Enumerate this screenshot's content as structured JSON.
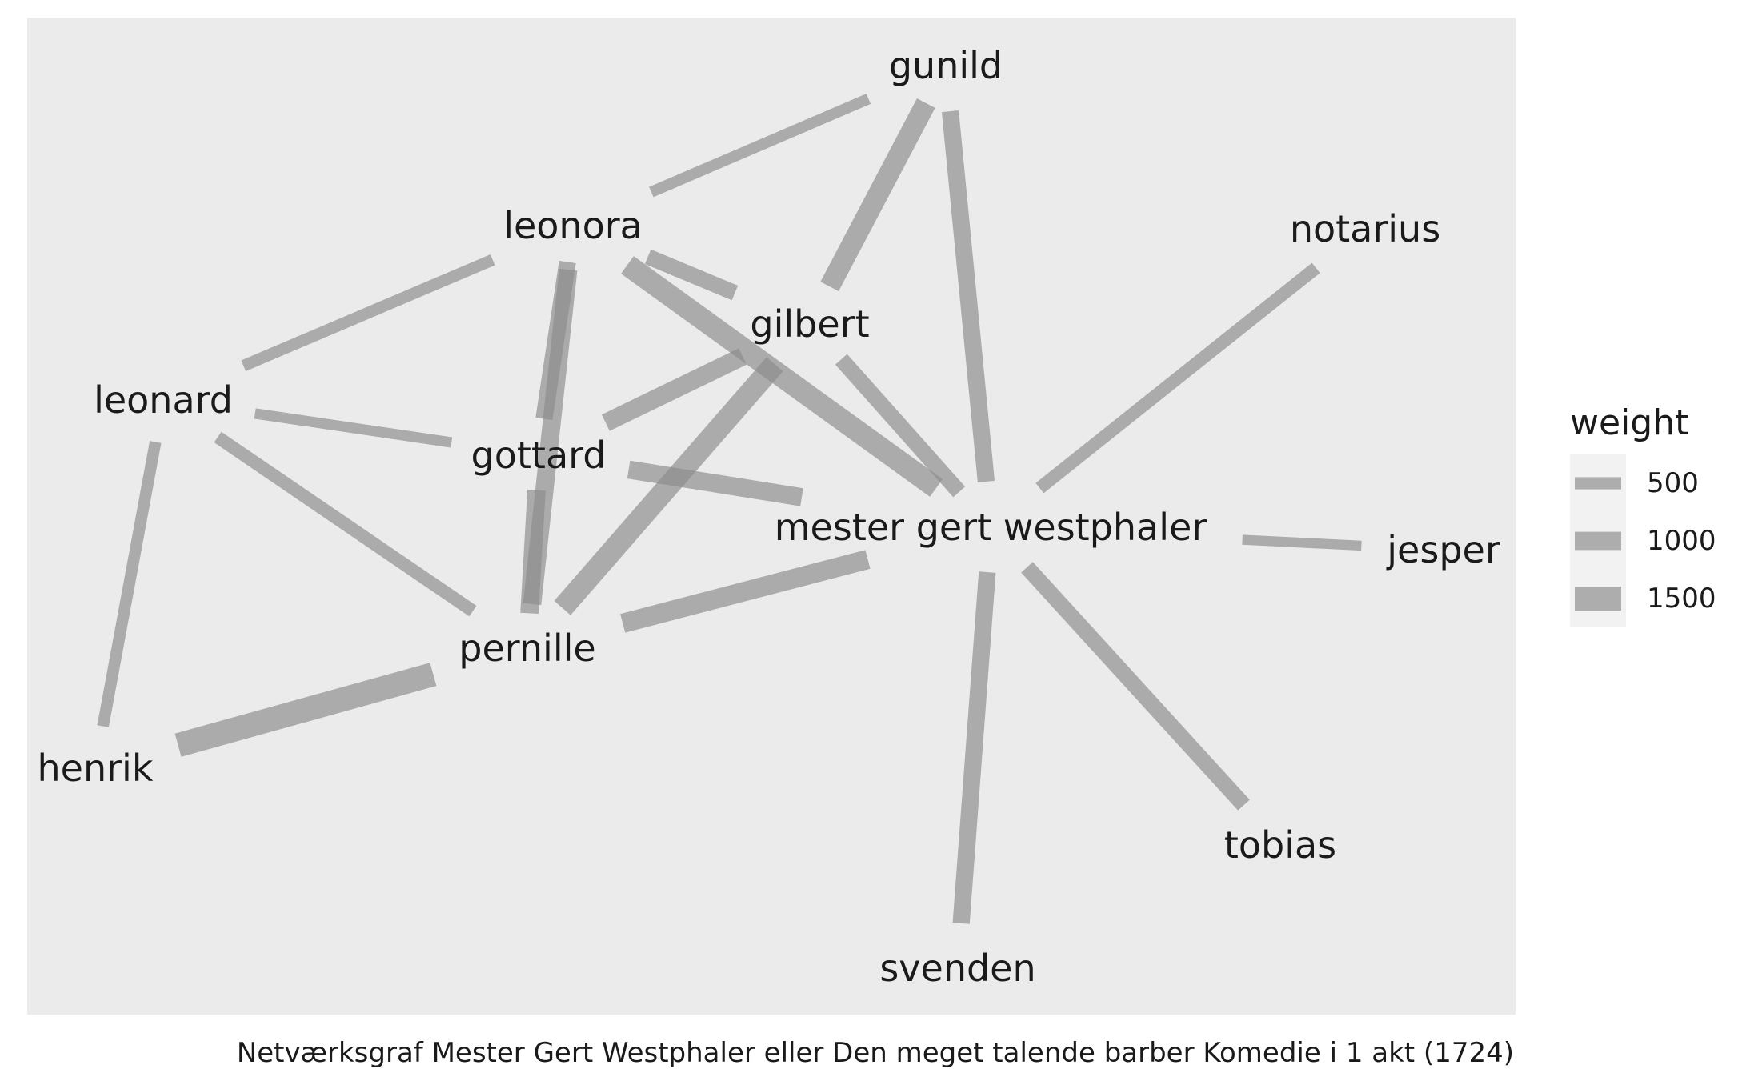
{
  "caption": "Netværksgraf Mester Gert Westphaler eller Den meget talende barber Komedie i 1 akt (1724)",
  "legend": {
    "title": "weight",
    "items": [
      {
        "label": "500",
        "weight": 500
      },
      {
        "label": "1000",
        "weight": 1000
      },
      {
        "label": "1500",
        "weight": 1500
      }
    ]
  },
  "colors": {
    "panel": "#ebebeb",
    "edge": "#8c8c8c",
    "legend_key_bg": "#f2f2f2",
    "text": "#1a1a1a"
  },
  "nodes": [
    {
      "id": "gunild",
      "label": "gunild"
    },
    {
      "id": "leonora",
      "label": "leonora"
    },
    {
      "id": "notarius",
      "label": "notarius"
    },
    {
      "id": "gilbert",
      "label": "gilbert"
    },
    {
      "id": "leonard",
      "label": "leonard"
    },
    {
      "id": "gottard",
      "label": "gottard"
    },
    {
      "id": "mester",
      "label": "mester gert westphaler"
    },
    {
      "id": "jesper",
      "label": "jesper"
    },
    {
      "id": "pernille",
      "label": "pernille"
    },
    {
      "id": "henrik",
      "label": "henrik"
    },
    {
      "id": "tobias",
      "label": "tobias"
    },
    {
      "id": "svenden",
      "label": "svenden"
    }
  ],
  "edges": [
    {
      "source": "leonora",
      "target": "gunild",
      "weight": 400
    },
    {
      "source": "gilbert",
      "target": "gunild",
      "weight": 1200
    },
    {
      "source": "mester",
      "target": "gunild",
      "weight": 900
    },
    {
      "source": "leonard",
      "target": "leonora",
      "weight": 450
    },
    {
      "source": "leonora",
      "target": "gilbert",
      "weight": 800
    },
    {
      "source": "leonora",
      "target": "mester",
      "weight": 1300
    },
    {
      "source": "leonora",
      "target": "gottard",
      "weight": 900
    },
    {
      "source": "leonora",
      "target": "pernille",
      "weight": 1000
    },
    {
      "source": "gilbert",
      "target": "gottard",
      "weight": 1000
    },
    {
      "source": "gilbert",
      "target": "mester",
      "weight": 800
    },
    {
      "source": "gilbert",
      "target": "pernille",
      "weight": 1300
    },
    {
      "source": "leonard",
      "target": "gottard",
      "weight": 350
    },
    {
      "source": "leonard",
      "target": "pernille",
      "weight": 550
    },
    {
      "source": "leonard",
      "target": "henrik",
      "weight": 450
    },
    {
      "source": "gottard",
      "target": "mester",
      "weight": 1000
    },
    {
      "source": "gottard",
      "target": "pernille",
      "weight": 1000
    },
    {
      "source": "mester",
      "target": "notarius",
      "weight": 550
    },
    {
      "source": "mester",
      "target": "jesper",
      "weight": 300
    },
    {
      "source": "mester",
      "target": "pernille",
      "weight": 1100
    },
    {
      "source": "mester",
      "target": "tobias",
      "weight": 800
    },
    {
      "source": "mester",
      "target": "svenden",
      "weight": 900
    },
    {
      "source": "pernille",
      "target": "henrik",
      "weight": 1500
    }
  ]
}
